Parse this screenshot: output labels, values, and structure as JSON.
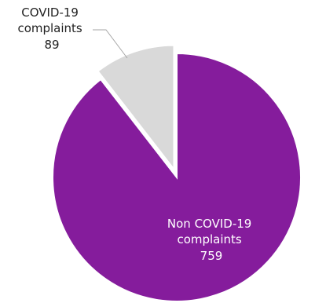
{
  "chart_data": {
    "type": "pie",
    "title": "",
    "slices": [
      {
        "label_lines": [
          "Non COVID-19",
          "complaints"
        ],
        "value": 759,
        "value_label": "759",
        "color": "#851c9c",
        "label_color": "#ffffff"
      },
      {
        "label_lines": [
          "COVID-19",
          "complaints"
        ],
        "value": 89,
        "value_label": "89",
        "color": "#d9d9d9",
        "label_color": "#222222",
        "exploded": true
      }
    ],
    "leader_line_color": "#a6a6a6",
    "legend": "none"
  }
}
